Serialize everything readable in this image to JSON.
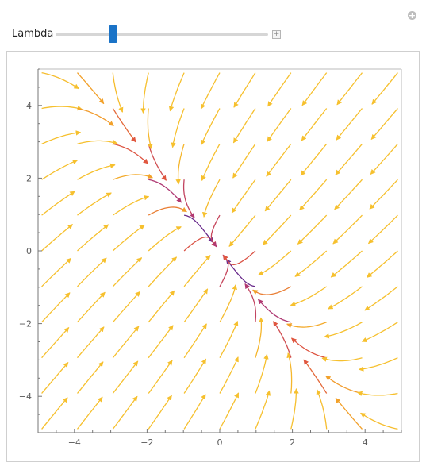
{
  "controls": {
    "slider_label": "Lambda",
    "slider_value_fraction": 0.26,
    "expand_button_glyph": "+",
    "corner_button_glyph": "+"
  },
  "chart_data": {
    "type": "streamplot",
    "xlim": [
      -5,
      5
    ],
    "ylim": [
      -5,
      5
    ],
    "x_ticks": [
      -4,
      -2,
      0,
      2,
      4
    ],
    "y_ticks": [
      -4,
      -2,
      0,
      2,
      4
    ],
    "colors": [
      "#2e1263",
      "#6a2a8c",
      "#b23a72",
      "#e0573f",
      "#f2a12a",
      "#f6c02e"
    ]
  }
}
